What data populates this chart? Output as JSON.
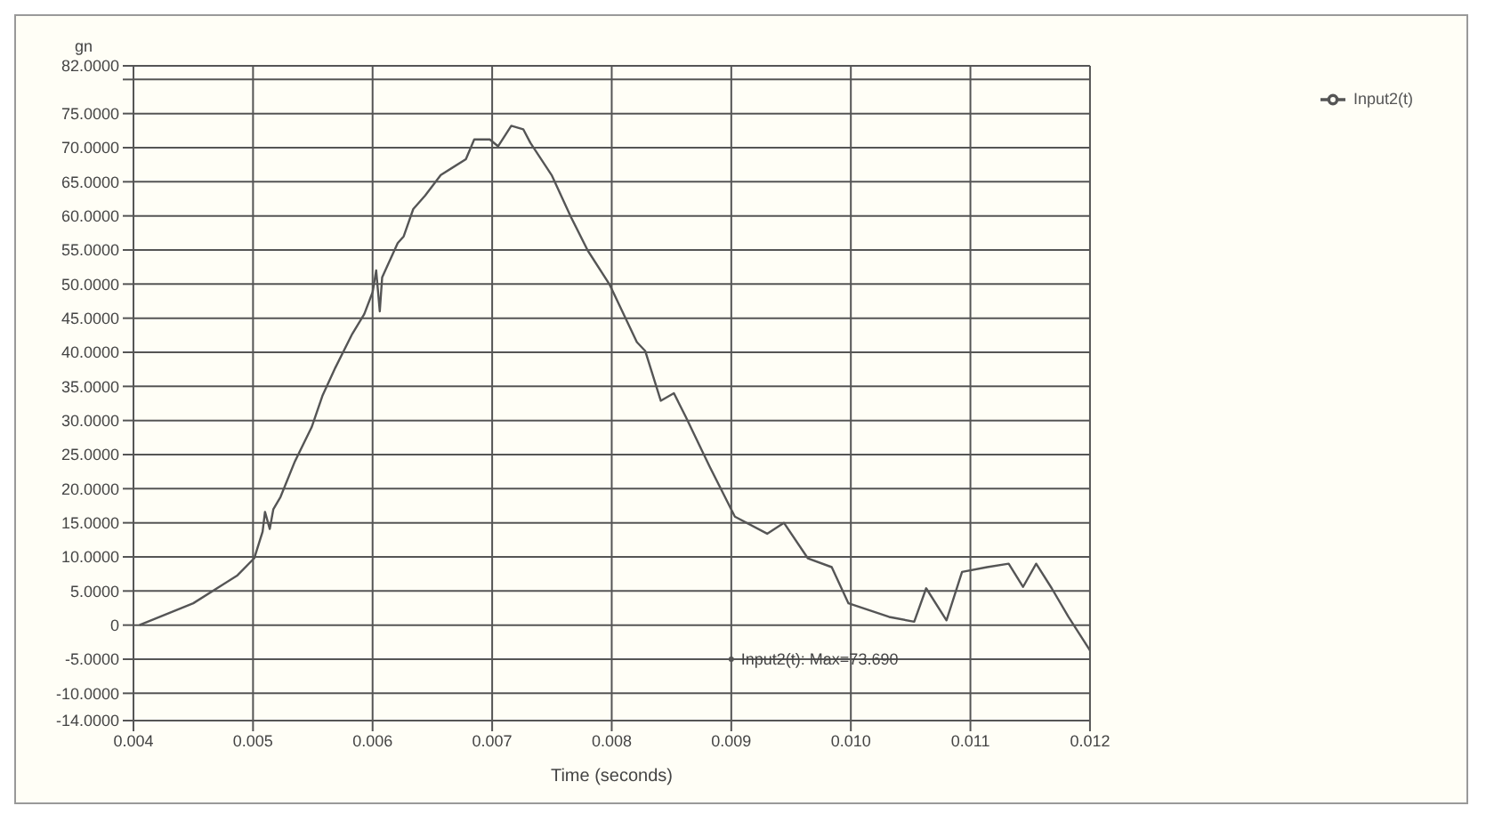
{
  "chart_data": {
    "type": "line",
    "xlabel": "Time (seconds)",
    "ylabel": "gn",
    "x": [
      0.00405,
      0.0045,
      0.00487,
      0.00501,
      0.00508,
      0.0051,
      0.00514,
      0.00517,
      0.00523,
      0.00535,
      0.00549,
      0.00558,
      0.00569,
      0.00583,
      0.00593,
      0.006,
      0.00603,
      0.00606,
      0.00608,
      0.00621,
      0.00626,
      0.00634,
      0.00644,
      0.00657,
      0.00678,
      0.00685,
      0.00698,
      0.00705,
      0.00716,
      0.00726,
      0.00732,
      0.0075,
      0.00766,
      0.0078,
      0.00798,
      0.00821,
      0.00828,
      0.00841,
      0.00852,
      0.00862,
      0.00882,
      0.00903,
      0.0093,
      0.00944,
      0.00964,
      0.00984,
      0.00998,
      0.01032,
      0.01053,
      0.01063,
      0.0108,
      0.01093,
      0.01114,
      0.01132,
      0.01144,
      0.01155,
      0.01168,
      0.01182,
      0.012
    ],
    "series": [
      {
        "name": "Input2(t)",
        "color": "#555555",
        "values": [
          0,
          3.2,
          7.3,
          9.8,
          13.7,
          16.6,
          14.1,
          17,
          18.8,
          24,
          29,
          33.6,
          37.8,
          42.7,
          45.6,
          48.8,
          52,
          46,
          51,
          56,
          57,
          61,
          63,
          66,
          68.3,
          71.2,
          71.2,
          70.2,
          73.2,
          72.7,
          70.7,
          65.9,
          59.8,
          54.9,
          50,
          41.5,
          40.2,
          32.9,
          34,
          30.5,
          23.2,
          15.9,
          13.4,
          15,
          9.8,
          8.5,
          3.2,
          1.2,
          0.5,
          5.4,
          0.7,
          7.8,
          8.5,
          9,
          5.6,
          9,
          5.4,
          1.2,
          -3.7
        ]
      }
    ],
    "xlim": [
      0.004,
      0.012
    ],
    "xticks": [
      {
        "value": 0.004,
        "label": "0.004"
      },
      {
        "value": 0.005,
        "label": "0.005"
      },
      {
        "value": 0.006,
        "label": "0.006"
      },
      {
        "value": 0.007,
        "label": "0.007"
      },
      {
        "value": 0.008,
        "label": "0.008"
      },
      {
        "value": 0.009,
        "label": "0.009"
      },
      {
        "value": 0.01,
        "label": "0.010"
      },
      {
        "value": 0.011,
        "label": "0.011"
      },
      {
        "value": 0.012,
        "label": "0.012"
      }
    ],
    "ylim": [
      -14,
      82
    ],
    "yticks": [
      {
        "value": -14,
        "label": "-14.0000"
      },
      {
        "value": -10,
        "label": "-10.0000"
      },
      {
        "value": -5,
        "label": "-5.0000"
      },
      0,
      {
        "value": 5,
        "label": "5.0000"
      },
      {
        "value": 10,
        "label": "10.0000"
      },
      {
        "value": 15,
        "label": "15.0000"
      },
      {
        "value": 20,
        "label": "20.0000"
      },
      {
        "value": 25,
        "label": "25.0000"
      },
      {
        "value": 30,
        "label": "30.0000"
      },
      {
        "value": 35,
        "label": "35.0000"
      },
      {
        "value": 40,
        "label": "40.0000"
      },
      {
        "value": 45,
        "label": "45.0000"
      },
      {
        "value": 50,
        "label": "50.0000"
      },
      {
        "value": 55,
        "label": "55.0000"
      },
      {
        "value": 60,
        "label": "60.0000"
      },
      {
        "value": 65,
        "label": "65.0000"
      },
      {
        "value": 70,
        "label": "70.0000"
      },
      {
        "value": 75,
        "label": "75.0000"
      },
      {
        "value": 80,
        "label": null
      },
      {
        "value": 82,
        "label": "82.0000"
      }
    ],
    "annotations": [
      {
        "text": "Input2(t): Max=73.690",
        "x": 0.009,
        "y": -5
      }
    ],
    "grid": true,
    "legend": "top right",
    "marker": "none",
    "line_style": "solid"
  }
}
